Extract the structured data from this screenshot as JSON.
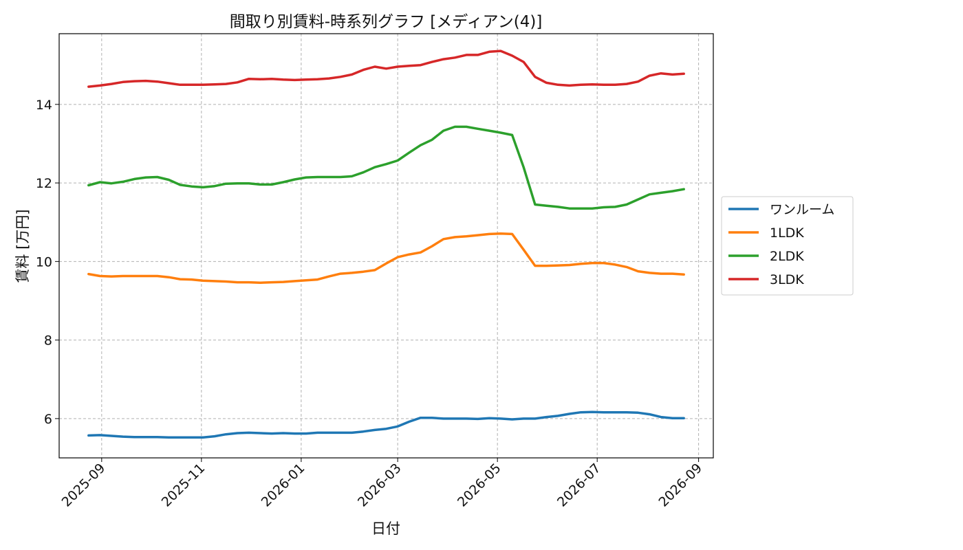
{
  "chart_data": {
    "type": "line",
    "title": "間取り別賃料-時系列グラフ [メディアン(4)]",
    "xlabel": "日付",
    "ylabel": "賃料 [万円]",
    "xlim": [
      "2025-08-06",
      "2026-09-10"
    ],
    "ylim": [
      5.0,
      15.8
    ],
    "x_ticks": [
      "2025-09",
      "2025-11",
      "2026-01",
      "2026-03",
      "2026-05",
      "2026-07",
      "2026-09"
    ],
    "y_ticks": [
      6,
      8,
      10,
      12,
      14
    ],
    "grid": true,
    "legend_position": "right-outside",
    "x": [
      "2025-08-24",
      "2025-08-31",
      "2025-09-07",
      "2025-09-14",
      "2025-09-21",
      "2025-09-28",
      "2025-10-05",
      "2025-10-12",
      "2025-10-19",
      "2025-10-26",
      "2025-11-02",
      "2025-11-09",
      "2025-11-16",
      "2025-11-23",
      "2025-11-30",
      "2025-12-07",
      "2025-12-14",
      "2025-12-21",
      "2025-12-28",
      "2026-01-04",
      "2026-01-11",
      "2026-01-18",
      "2026-01-25",
      "2026-02-01",
      "2026-02-08",
      "2026-02-15",
      "2026-02-22",
      "2026-03-01",
      "2026-03-08",
      "2026-03-15",
      "2026-03-22",
      "2026-03-29",
      "2026-04-05",
      "2026-04-12",
      "2026-04-19",
      "2026-04-26",
      "2026-05-03",
      "2026-05-10",
      "2026-05-17",
      "2026-05-24",
      "2026-05-31",
      "2026-06-07",
      "2026-06-14",
      "2026-06-21",
      "2026-06-28",
      "2026-07-05",
      "2026-07-12",
      "2026-07-19",
      "2026-07-26",
      "2026-08-02",
      "2026-08-09",
      "2026-08-16",
      "2026-08-23"
    ],
    "series": [
      {
        "name": "ワンルーム",
        "color": "#1f77b4",
        "values": [
          5.57,
          5.58,
          5.56,
          5.54,
          5.53,
          5.53,
          5.53,
          5.52,
          5.52,
          5.52,
          5.52,
          5.55,
          5.6,
          5.63,
          5.64,
          5.63,
          5.62,
          5.63,
          5.62,
          5.62,
          5.64,
          5.64,
          5.64,
          5.64,
          5.67,
          5.71,
          5.74,
          5.8,
          5.92,
          6.02,
          6.02,
          6.0,
          6.0,
          6.0,
          5.99,
          6.01,
          6.0,
          5.98,
          6.0,
          6.0,
          6.04,
          6.07,
          6.12,
          6.16,
          6.17,
          6.16,
          6.16,
          6.16,
          6.15,
          6.11,
          6.04,
          6.01,
          6.01
        ]
      },
      {
        "name": "1LDK",
        "color": "#ff7f0e",
        "values": [
          9.68,
          9.63,
          9.62,
          9.63,
          9.63,
          9.63,
          9.63,
          9.6,
          9.55,
          9.54,
          9.51,
          9.5,
          9.49,
          9.47,
          9.47,
          9.46,
          9.47,
          9.48,
          9.5,
          9.52,
          9.54,
          9.62,
          9.69,
          9.71,
          9.74,
          9.78,
          9.95,
          10.11,
          10.18,
          10.23,
          10.39,
          10.57,
          10.62,
          10.64,
          10.67,
          10.7,
          10.71,
          10.7,
          10.3,
          9.89,
          9.89,
          9.9,
          9.91,
          9.94,
          9.96,
          9.96,
          9.92,
          9.86,
          9.75,
          9.71,
          9.69,
          9.69,
          9.67
        ]
      },
      {
        "name": "2LDK",
        "color": "#2ca02c",
        "values": [
          11.94,
          12.02,
          11.99,
          12.03,
          12.1,
          12.14,
          12.15,
          12.08,
          11.95,
          11.91,
          11.89,
          11.92,
          11.98,
          11.99,
          11.99,
          11.96,
          11.96,
          12.02,
          12.09,
          12.14,
          12.15,
          12.15,
          12.15,
          12.17,
          12.27,
          12.4,
          12.48,
          12.57,
          12.77,
          12.96,
          13.1,
          13.33,
          13.43,
          13.43,
          13.38,
          13.33,
          13.28,
          13.22,
          12.4,
          11.45,
          11.42,
          11.39,
          11.35,
          11.35,
          11.35,
          11.38,
          11.39,
          11.45,
          11.58,
          11.71,
          11.75,
          11.79,
          11.84
        ]
      },
      {
        "name": "3LDK",
        "color": "#d62728",
        "values": [
          14.45,
          14.48,
          14.52,
          14.57,
          14.59,
          14.6,
          14.58,
          14.54,
          14.5,
          14.5,
          14.5,
          14.51,
          14.52,
          14.56,
          14.65,
          14.64,
          14.65,
          14.63,
          14.62,
          14.63,
          14.64,
          14.66,
          14.7,
          14.76,
          14.88,
          14.96,
          14.91,
          14.96,
          14.98,
          15.0,
          15.08,
          15.15,
          15.19,
          15.26,
          15.26,
          15.34,
          15.36,
          15.24,
          15.08,
          14.7,
          14.55,
          14.5,
          14.48,
          14.5,
          14.51,
          14.5,
          14.5,
          14.52,
          14.58,
          14.73,
          14.79,
          14.76,
          14.78
        ]
      }
    ]
  }
}
